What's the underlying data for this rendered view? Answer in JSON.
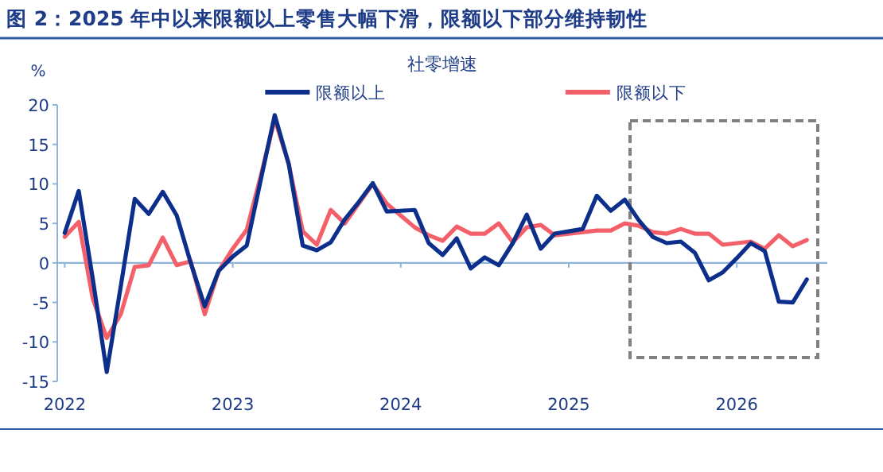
{
  "chart_data": {
    "type": "line",
    "title": "图 2：2025 年中以来限额以上零售大幅下滑，限额以下部分维持韧性",
    "subtitle": "社零增速",
    "ylabel": "%",
    "x": [
      "2022-01",
      "2022-02",
      "2022-03",
      "2022-04",
      "2022-05",
      "2022-06",
      "2022-07",
      "2022-08",
      "2022-09",
      "2022-10",
      "2022-11",
      "2022-12",
      "2023-01",
      "2023-02",
      "2023-03",
      "2023-04",
      "2023-05",
      "2023-06",
      "2023-07",
      "2023-08",
      "2023-09",
      "2023-10",
      "2023-11",
      "2023-12",
      "2024-01",
      "2024-02",
      "2024-03",
      "2024-04",
      "2024-05",
      "2024-06",
      "2024-07",
      "2024-08",
      "2024-09",
      "2024-10",
      "2024-11",
      "2024-12",
      "2025-01",
      "2025-02",
      "2025-03",
      "2025-04",
      "2025-05",
      "2025-06",
      "2025-07",
      "2025-08",
      "2025-09",
      "2025-10",
      "2025-11",
      "2025-12",
      "2026-01",
      "2026-02",
      "2026-03",
      "2026-04",
      "2026-05",
      "2026-06"
    ],
    "series": [
      {
        "name": "限额以上",
        "color": "#0d2f8c",
        "values": [
          3.8,
          9.1,
          -2,
          -13.8,
          -3,
          8.1,
          6.2,
          9.0,
          6.0,
          0,
          -5.5,
          -1,
          0.8,
          2.2,
          10.5,
          18.7,
          12.5,
          2.2,
          1.6,
          2.6,
          5.5,
          7.7,
          10.1,
          6.5,
          6.6,
          6.7,
          2.5,
          1.0,
          3.1,
          -0.7,
          0.7,
          -0.3,
          2.5,
          6.1,
          1.8,
          3.7,
          4.0,
          4.3,
          8.5,
          6.6,
          8.0,
          5.4,
          3.3,
          2.5,
          2.7,
          1.3,
          -2.2,
          -1.2,
          0.6,
          2.5,
          1.5,
          -4.9,
          -5.0,
          -2.1
        ]
      },
      {
        "name": "限额以下",
        "color": "#f4606a",
        "values": [
          3.3,
          5.2,
          -4.5,
          -9.5,
          -6.5,
          -0.5,
          -0.3,
          3.2,
          -0.3,
          0.2,
          -6.5,
          -1,
          1.8,
          4.2,
          11,
          18.2,
          12.5,
          4.0,
          2.3,
          6.7,
          5.0,
          7.5,
          10.0,
          7.5,
          6.0,
          4.5,
          3.5,
          2.8,
          4.6,
          3.7,
          3.7,
          5.0,
          2.6,
          4.5,
          4.8,
          3.5,
          3.7,
          3.9,
          4.1,
          4.1,
          5.0,
          4.7,
          3.9,
          3.7,
          4.3,
          3.7,
          3.7,
          2.3,
          2.5,
          2.7,
          1.8,
          3.5,
          2.1,
          2.9
        ]
      }
    ],
    "xlim": [
      "2021-12-15",
      "2026-07-15"
    ],
    "ylim": [
      -15,
      20
    ],
    "xticks": [
      {
        "value": "2022-01",
        "label": "2022"
      },
      {
        "value": "2023-01",
        "label": "2023"
      },
      {
        "value": "2024-01",
        "label": "2024"
      },
      {
        "value": "2025-01",
        "label": "2025"
      },
      {
        "value": "2026-01",
        "label": "2026"
      }
    ],
    "yticks": [
      -15,
      -10,
      -5,
      0,
      5,
      10,
      15,
      20
    ],
    "ref_lines": [
      {
        "axis": "y",
        "value": 0,
        "color": "#8fb4d9"
      }
    ],
    "legend": "top"
  }
}
